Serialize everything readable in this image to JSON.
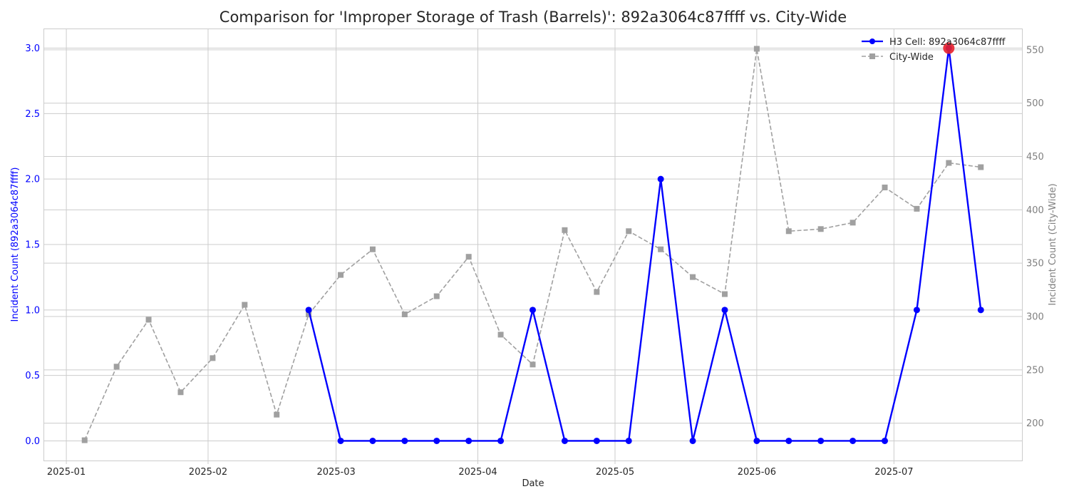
{
  "chart_data": {
    "type": "line",
    "title": "Comparison for 'Improper Storage of Trash (Barrels)': 892a3064c87ffff vs. City-Wide",
    "xlabel": "Date",
    "ylabel_left": "Incident Count (892a3064c87ffff)",
    "ylabel_right": "Incident Count (City-Wide)",
    "x_ticks": [
      "2025-01",
      "2025-02",
      "2025-03",
      "2025-04",
      "2025-05",
      "2025-06",
      "2025-07"
    ],
    "y_left_ticks": [
      "0.0",
      "0.5",
      "1.0",
      "1.5",
      "2.0",
      "2.5",
      "3.0"
    ],
    "y_right_ticks": [
      "200",
      "250",
      "300",
      "350",
      "400",
      "450",
      "500",
      "550"
    ],
    "ylim_left": [
      -0.15,
      3.15
    ],
    "ylim_right": [
      165,
      570
    ],
    "grid": true,
    "legend_position": "top-right",
    "series": [
      {
        "name": "H3 Cell: 892a3064c87ffff",
        "axis": "left",
        "color": "#0000ff",
        "style": "solid",
        "marker": "circle",
        "x": [
          "2025-02-23",
          "2025-03-02",
          "2025-03-09",
          "2025-03-16",
          "2025-03-23",
          "2025-03-30",
          "2025-04-06",
          "2025-04-13",
          "2025-04-20",
          "2025-04-27",
          "2025-05-04",
          "2025-05-11",
          "2025-05-18",
          "2025-05-25",
          "2025-06-01",
          "2025-06-08",
          "2025-06-15",
          "2025-06-22",
          "2025-06-29",
          "2025-07-06",
          "2025-07-13",
          "2025-07-20"
        ],
        "values": [
          1,
          0,
          0,
          0,
          0,
          0,
          0,
          1,
          0,
          0,
          0,
          2,
          0,
          1,
          0,
          0,
          0,
          0,
          0,
          1,
          3,
          1
        ]
      },
      {
        "name": "City-Wide",
        "axis": "right",
        "color": "#a0a0a0",
        "style": "dashed",
        "marker": "square",
        "x": [
          "2025-01-05",
          "2025-01-12",
          "2025-01-19",
          "2025-01-26",
          "2025-02-02",
          "2025-02-09",
          "2025-02-16",
          "2025-02-23",
          "2025-03-02",
          "2025-03-09",
          "2025-03-16",
          "2025-03-23",
          "2025-03-30",
          "2025-04-06",
          "2025-04-13",
          "2025-04-20",
          "2025-04-27",
          "2025-05-04",
          "2025-05-11",
          "2025-05-18",
          "2025-05-25",
          "2025-06-01",
          "2025-06-08",
          "2025-06-15",
          "2025-06-22",
          "2025-06-29",
          "2025-07-06",
          "2025-07-13",
          "2025-07-20"
        ],
        "values": [
          184,
          253,
          297,
          229,
          261,
          311,
          208,
          302,
          339,
          363,
          302,
          319,
          356,
          283,
          255,
          381,
          323,
          380,
          363,
          337,
          321,
          551,
          380,
          382,
          388,
          421,
          401,
          444,
          440
        ]
      }
    ],
    "highlight": {
      "series": "H3 Cell: 892a3064c87ffff",
      "x": "2025-07-13",
      "value": 3,
      "color": "#e8202a"
    }
  }
}
